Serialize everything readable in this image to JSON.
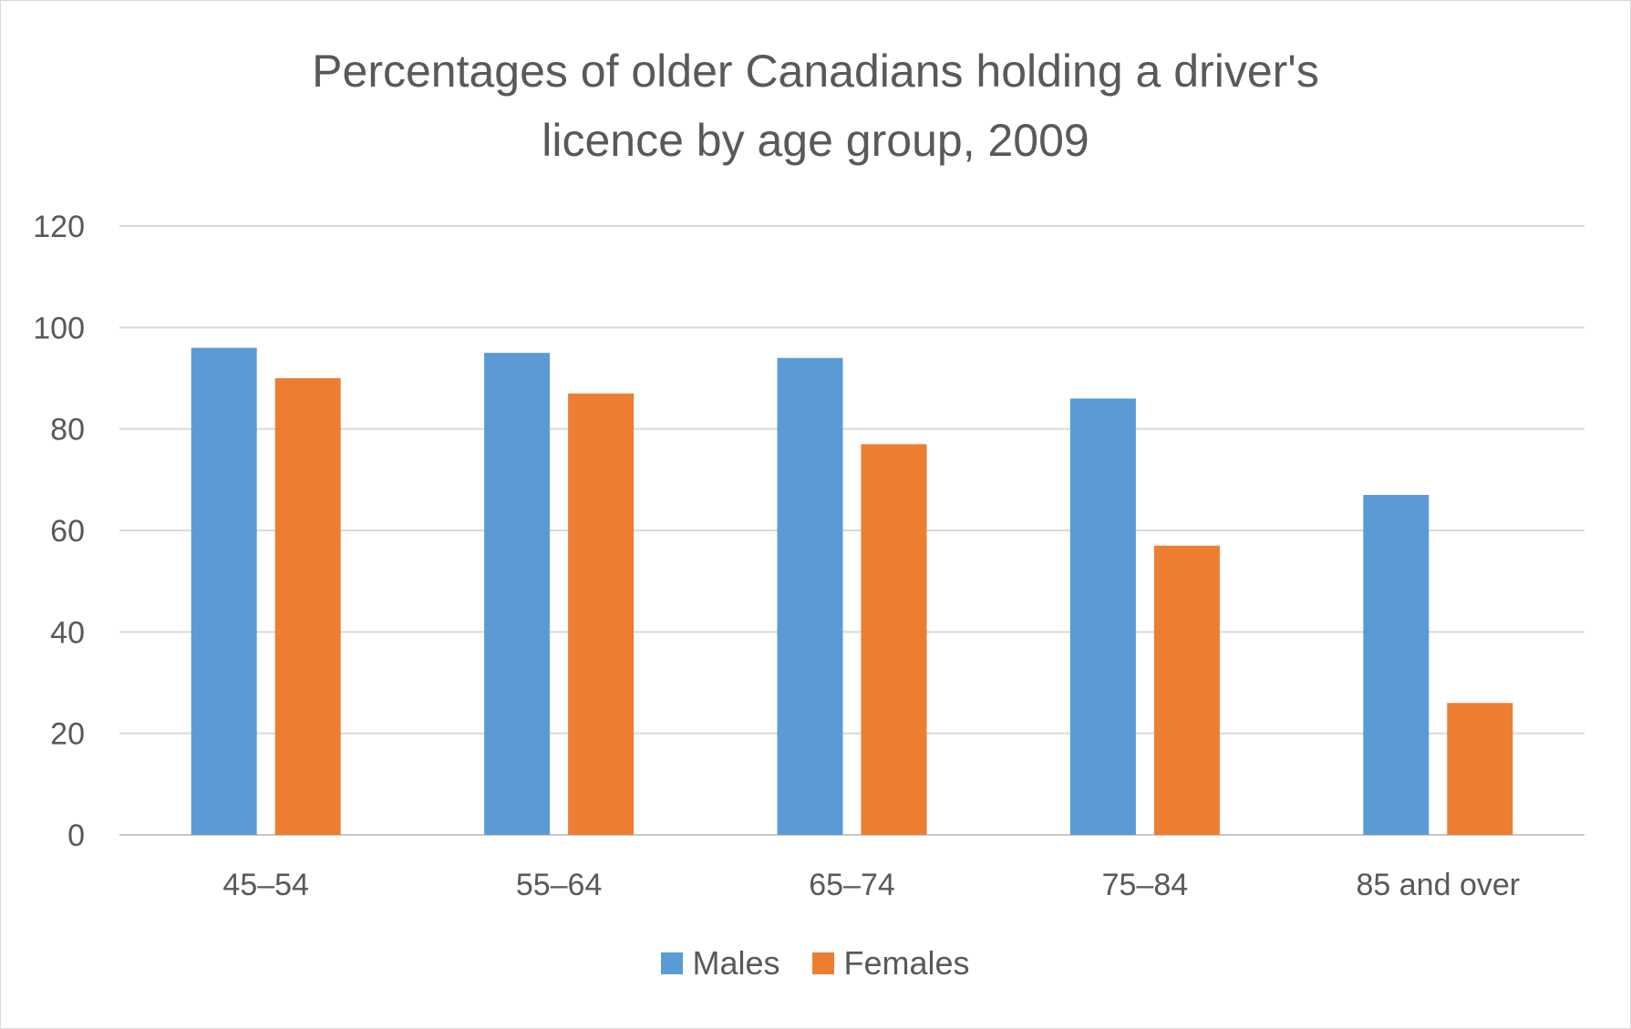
{
  "chart_data": {
    "type": "bar",
    "title_lines": [
      "Percentages of older Canadians holding a driver's",
      "licence by age group, 2009"
    ],
    "categories": [
      "45–54",
      "55–64",
      "65–74",
      "75–84",
      "85 and over"
    ],
    "series": [
      {
        "name": "Males",
        "color": "#5b9bd5",
        "values": [
          96,
          95,
          94,
          86,
          67
        ]
      },
      {
        "name": "Females",
        "color": "#ed7d31",
        "values": [
          90,
          87,
          77,
          57,
          26
        ]
      }
    ],
    "yticks": [
      "0",
      "20",
      "40",
      "60",
      "80",
      "100",
      "120"
    ],
    "ylim": [
      0,
      120
    ],
    "grid": true,
    "legend_position": "bottom"
  }
}
